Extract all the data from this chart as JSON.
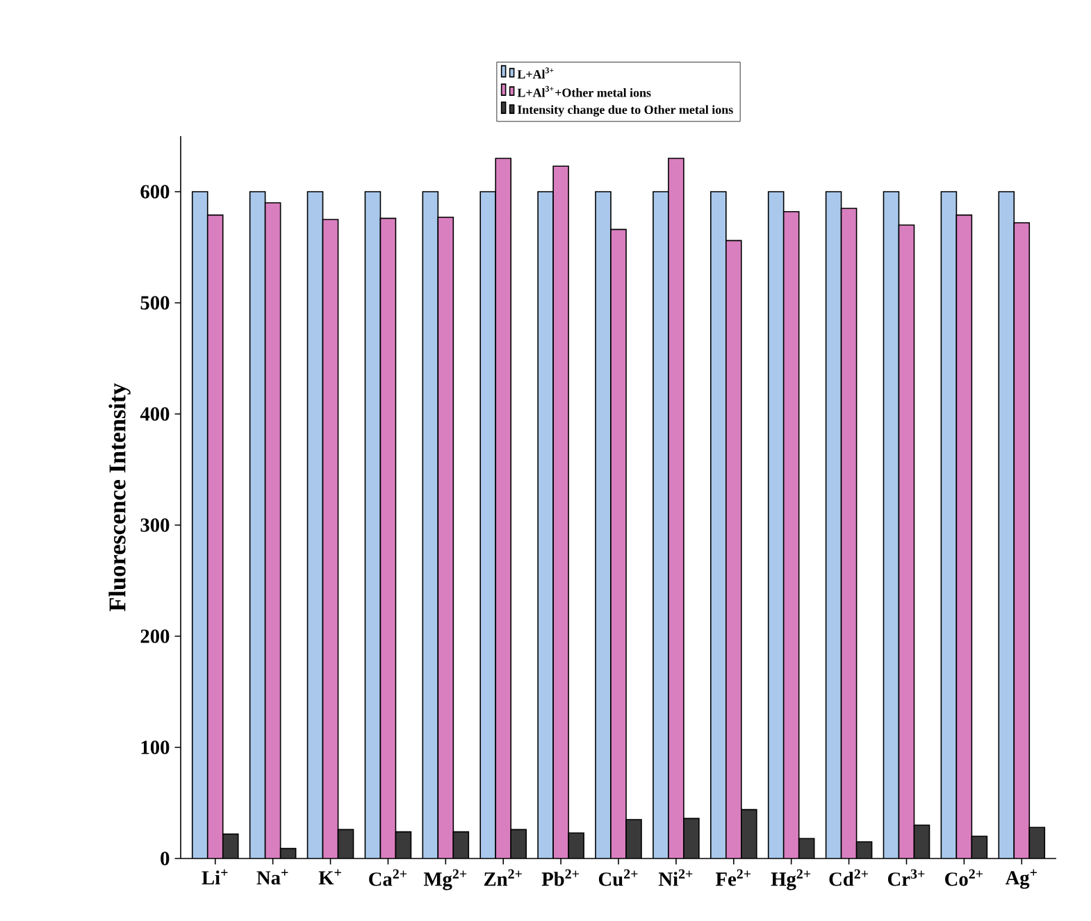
{
  "chart_data": {
    "type": "bar",
    "ylabel": "Fluorescence Intensity",
    "categories": [
      "Li$^{+}$",
      "Na$^{+}$",
      "K$^{+}$",
      "Ca$^{2+}$",
      "Mg$^{2+}$",
      "Zn$^{2+}$",
      "Pb$^{2+}$",
      "Cu$^{2+}$",
      "Ni$^{2+}$",
      "Fe$^{2+}$",
      "Hg$^{2+}$",
      "Cd$^{2+}$",
      "Cr$^{3+}$",
      "Co$^{2+}$",
      "Ag$^{+}$"
    ],
    "series": [
      {
        "name": "L+Al$^{3+}$",
        "color": "#a9c8ec",
        "values": [
          600,
          600,
          600,
          600,
          600,
          600,
          600,
          600,
          600,
          600,
          600,
          600,
          600,
          600,
          600
        ]
      },
      {
        "name": "L+Al$^{3+}$+Other metal ions",
        "color": "#d97fbf",
        "values": [
          579,
          590,
          575,
          576,
          577,
          630,
          623,
          566,
          630,
          556,
          582,
          585,
          570,
          579,
          572
        ]
      },
      {
        "name": "Intensity change due to Other metal ions",
        "color": "#3a3a3a",
        "values": [
          22,
          9,
          26,
          24,
          24,
          26,
          23,
          35,
          36,
          44,
          18,
          15,
          30,
          20,
          28
        ]
      }
    ],
    "ylim": [
      0,
      650
    ],
    "yticks": [
      0,
      100,
      200,
      300,
      400,
      500,
      600
    ],
    "grid": false,
    "legend": "top"
  }
}
